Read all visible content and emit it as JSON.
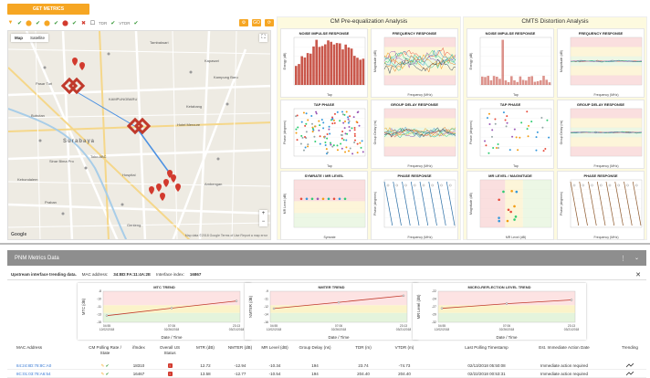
{
  "topbar": {
    "metrics_button": "GET METRICS"
  },
  "map_toolbar": {
    "filter_items": [
      "",
      "",
      "",
      "",
      "",
      ""
    ],
    "tdr_label": "TDR",
    "vtdr_label": "VTDR",
    "go_button": "GO"
  },
  "map": {
    "tabs": [
      "Map",
      "Satellite"
    ],
    "city_label": "Surabaya",
    "area_labels": [
      "Tambaksari",
      "Kapasari",
      "Kampung Baru",
      "Ketabang",
      "Bubutan",
      "KAMPUNGBARU",
      "Hotel Mercure",
      "Sinar Bima Pro",
      "Kebondalem",
      "Toko ABC",
      "Pasar Turi",
      "Hospital",
      "Ambengan",
      "Praban",
      "Genteng"
    ],
    "google_logo": "Google",
    "attribution": "Map data ©2018 Google   Terms of Use   Report a map error"
  },
  "analysis_left": {
    "title": "CM Pre-equalization Analysis",
    "charts": [
      {
        "title": "NOISE IMPULSE RESPONSE",
        "xlabel": "Tap",
        "ylabel": "Energy (dB)"
      },
      {
        "title": "FREQUENCY RESPONSE",
        "xlabel": "Frequency (MHz)",
        "ylabel": "Magnitude (dB)"
      },
      {
        "title": "TAP PHASE",
        "xlabel": "Tap",
        "ylabel": "Phase (degrees)"
      },
      {
        "title": "GROUP DELAY RESPONSE",
        "xlabel": "Frequency (MHz)",
        "ylabel": "Group Delay (ns)"
      },
      {
        "title": "SYMRATE / MR LEVEL",
        "xlabel": "Symrate",
        "ylabel": "MR Level (dB)"
      },
      {
        "title": "PHASE RESPONSE",
        "xlabel": "Frequency (MHz)",
        "ylabel": "Phase (degrees)"
      }
    ]
  },
  "analysis_right": {
    "title": "CMTS Distortion Analysis",
    "charts": [
      {
        "title": "NOISE IMPULSE RESPONSE",
        "xlabel": "Tap",
        "ylabel": "Energy (dB)"
      },
      {
        "title": "FREQUENCY RESPONSE",
        "xlabel": "Frequency (MHz)",
        "ylabel": "Magnitude (dB)"
      },
      {
        "title": "TAP PHASE",
        "xlabel": "Tap",
        "ylabel": "Phase (degrees)"
      },
      {
        "title": "GROUP DELAY RESPONSE",
        "xlabel": "Frequency (MHz)",
        "ylabel": "Group Delay (ns)"
      },
      {
        "title": "MR LEVEL / MAGNITUDE",
        "xlabel": "MR Level (dB)",
        "ylabel": "Magnitude (dB)"
      },
      {
        "title": "PHASE RESPONSE",
        "xlabel": "Frequency (MHz)",
        "ylabel": "Phase (degrees)"
      }
    ]
  },
  "pnm": {
    "header": "PNM Metrics Data",
    "info_label": "Upstream interface trending data.",
    "mac_label": "MAC address:",
    "mac_value": "34:BD:FA:11:4A:2E",
    "ifindex_label": "Interface index:",
    "ifindex_value": "16867"
  },
  "chart_data": [
    {
      "type": "line",
      "title": "MTC TREND",
      "xlabel": "Date / Time",
      "ylabel": "MTC (dB)",
      "x": [
        "04:55 12/02/2018",
        "07:06 02/26/2018",
        "23:13 03/21/2018"
      ],
      "series": [
        {
          "values": [
            -13.5,
            -11.8,
            -10.2
          ]
        }
      ],
      "ylim": [
        -15,
        -8
      ]
    },
    {
      "type": "line",
      "title": "NMTER TREND",
      "xlabel": "Date / Time",
      "ylabel": "NMTER (dB)",
      "x": [
        "04:55 12/02/2018",
        "07:06 02/26/2018",
        "23:13 03/21/2018"
      ],
      "series": [
        {
          "values": [
            -12.9,
            -11.5,
            -10.0
          ]
        }
      ],
      "ylim": [
        -16,
        -9
      ]
    },
    {
      "type": "line",
      "title": "MICRO-REFLECTION LEVEL TREND",
      "xlabel": "Date / Time",
      "ylabel": "MR Level (dB)",
      "x": [
        "04:55 12/02/2018",
        "07:06 02/26/2018",
        "23:13 03/21/2018"
      ],
      "series": [
        {
          "values": [
            -27.5,
            -26.0,
            -24.8
          ]
        }
      ],
      "ylim": [
        -32,
        -22
      ]
    }
  ],
  "table": {
    "headers": [
      "MAC Address",
      "CM Polling Rate / State",
      "ifIndex",
      "Overall US Status",
      "MTR (dB)",
      "NMTER (dB)",
      "MR Level (dB)",
      "Group Delay (ns)",
      "TDR (m)",
      "VTDR (m)",
      "Last Polling Timestamp",
      "Est. Immediate Action Date",
      "Trending"
    ],
    "rows": [
      [
        "84:24:8D:78:8C:A0",
        "",
        "18310",
        "",
        "12.72",
        "-12.94",
        "-10.34",
        "194",
        "23.74",
        "-74.73",
        "02/13/2018 05:50:08",
        "Immediate action required",
        ""
      ],
      [
        "8C:01:03:78:A6:54",
        "",
        "16467",
        "",
        "13.58",
        "-12.77",
        "-10.54",
        "194",
        "204.40",
        "204.40",
        "02/22/2018 00:53:31",
        "Immediate action required",
        ""
      ]
    ]
  },
  "colors": {
    "accent": "#f6a623",
    "marker": "#d23a2e",
    "panel_bg": "#fdfadf",
    "pnm_header": "#8e8e8e"
  }
}
